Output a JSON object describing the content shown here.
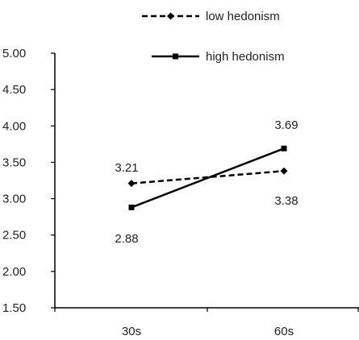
{
  "chart_data": {
    "type": "line",
    "categories": [
      "30s",
      "60s"
    ],
    "series": [
      {
        "name": "low hedonism",
        "values": [
          3.21,
          3.38
        ],
        "line_style": "dashed",
        "marker": "diamond",
        "color": "#000000"
      },
      {
        "name": "high hedonism",
        "values": [
          2.88,
          3.69
        ],
        "line_style": "solid",
        "marker": "square",
        "color": "#000000"
      }
    ],
    "yticks": [
      "1.50",
      "2.00",
      "2.50",
      "3.00",
      "3.50",
      "4.00",
      "4.50",
      "5.00"
    ],
    "ylim": [
      1.5,
      5.0
    ],
    "grid": false,
    "legend_position": "top-right"
  }
}
